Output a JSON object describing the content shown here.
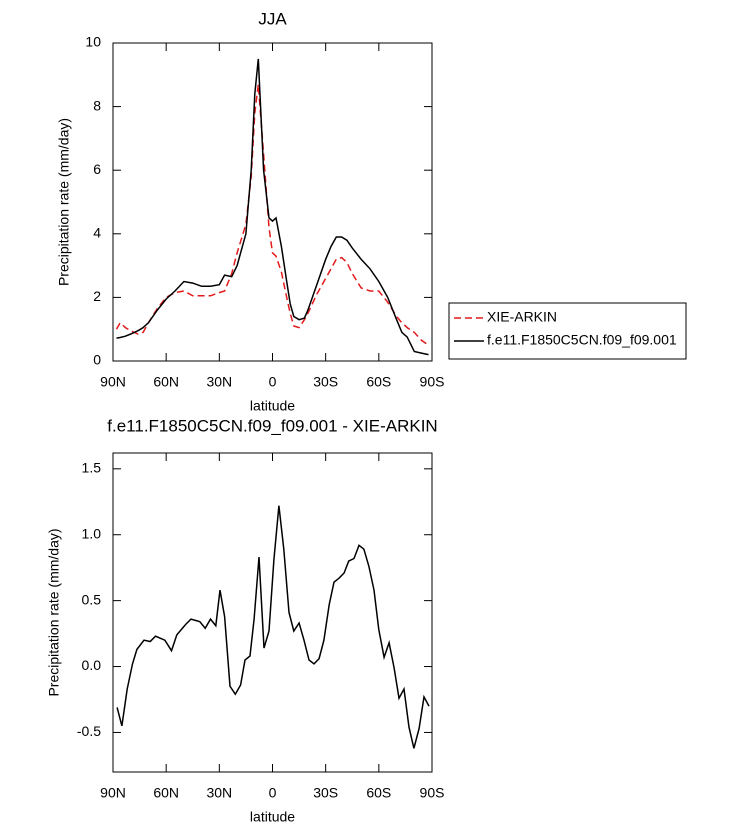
{
  "chart_data": [
    {
      "type": "line",
      "title": "JJA",
      "x_label": "latitude",
      "y_label": "Precipitation rate (mm/day)",
      "x": [
        88,
        86,
        83,
        80,
        76,
        73,
        70,
        65,
        60,
        55,
        50,
        45,
        40,
        35,
        30,
        27,
        23,
        20,
        15,
        12,
        10,
        8,
        5,
        2,
        0,
        -2,
        -5,
        -8,
        -10,
        -12,
        -15,
        -18,
        -20,
        -25,
        -30,
        -33,
        -36,
        -39,
        -42,
        -45,
        -50,
        -55,
        -60,
        -65,
        -70,
        -73,
        -76,
        -80,
        -84,
        -88
      ],
      "series": [
        {
          "name": "XIE-ARKIN",
          "color": "#e31a1c",
          "dashed": true,
          "values": [
            1.0,
            1.2,
            1.05,
            0.95,
            0.85,
            0.9,
            1.2,
            1.65,
            2.0,
            2.15,
            2.2,
            2.05,
            2.05,
            2.05,
            2.15,
            2.2,
            2.75,
            3.4,
            4.3,
            5.8,
            7.8,
            8.7,
            6.5,
            4.2,
            3.4,
            3.3,
            2.8,
            2.0,
            1.5,
            1.1,
            1.05,
            1.3,
            1.5,
            2.1,
            2.6,
            2.9,
            3.2,
            3.25,
            3.1,
            2.75,
            2.3,
            2.2,
            2.2,
            1.85,
            1.4,
            1.2,
            1.05,
            0.9,
            0.65,
            0.5
          ]
        },
        {
          "name": "f.e11.F1850C5CN.f09_f09.001",
          "color": "#000000",
          "dashed": false,
          "values": [
            0.72,
            0.74,
            0.78,
            0.85,
            0.95,
            1.05,
            1.2,
            1.6,
            1.95,
            2.2,
            2.5,
            2.45,
            2.35,
            2.35,
            2.4,
            2.7,
            2.65,
            3.0,
            4.0,
            6.0,
            8.4,
            9.5,
            6.0,
            4.5,
            4.4,
            4.5,
            3.6,
            2.5,
            1.8,
            1.4,
            1.3,
            1.35,
            1.6,
            2.4,
            3.2,
            3.6,
            3.9,
            3.9,
            3.8,
            3.55,
            3.2,
            2.9,
            2.5,
            2.0,
            1.3,
            0.9,
            0.75,
            0.3,
            0.25,
            0.2
          ]
        }
      ],
      "xlim": [
        90,
        -90
      ],
      "xticks": [
        {
          "value": 90,
          "label": "90N"
        },
        {
          "value": 60,
          "label": "60N"
        },
        {
          "value": 30,
          "label": "30N"
        },
        0,
        {
          "value": -30,
          "label": "30S"
        },
        {
          "value": -60,
          "label": "60S"
        },
        {
          "value": -90,
          "label": "90S"
        }
      ],
      "ylim": [
        0,
        10
      ],
      "yticks": [
        0,
        2,
        4,
        6,
        8,
        10
      ],
      "legend": "outside-right"
    },
    {
      "type": "line",
      "title": "f.e11.F1850C5CN.f09_f09.001 - XIE-ARKIN",
      "x_label": "latitude",
      "y_label": "Precipitation rate (mm/day)",
      "x": [
        87.7,
        85,
        82,
        79,
        76.5,
        72.5,
        69,
        66,
        60.7,
        57,
        54,
        49,
        46,
        41,
        38,
        35,
        32,
        29.6,
        27,
        24,
        21,
        18,
        15.5,
        12.7,
        10.4,
        7.6,
        4.8,
        2,
        -0.8,
        -3.6,
        -6.4,
        -9.3,
        -12,
        -15,
        -17.8,
        -20.6,
        -23.4,
        -26.3,
        -29,
        -32,
        -34.7,
        -37.5,
        -40.4,
        -43,
        -46,
        -48.8,
        -51.6,
        -54.4,
        -57.3,
        -60,
        -63,
        -65.8,
        -68.6,
        -71.4,
        -74.2,
        -77,
        -79.8,
        -82.7,
        -85.5,
        -88.3
      ],
      "series": [
        {
          "color": "#000000",
          "dashed": false,
          "values": [
            -0.31,
            -0.45,
            -0.17,
            0.02,
            0.13,
            0.2,
            0.19,
            0.23,
            0.2,
            0.12,
            0.24,
            0.32,
            0.36,
            0.34,
            0.29,
            0.36,
            0.31,
            0.58,
            0.38,
            -0.15,
            -0.21,
            -0.14,
            0.05,
            0.08,
            0.36,
            0.83,
            0.14,
            0.27,
            0.81,
            1.22,
            0.89,
            0.41,
            0.27,
            0.33,
            0.2,
            0.05,
            0.02,
            0.06,
            0.2,
            0.47,
            0.64,
            0.67,
            0.71,
            0.8,
            0.82,
            0.92,
            0.89,
            0.76,
            0.58,
            0.28,
            0.07,
            0.18,
            -0.01,
            -0.24,
            -0.17,
            -0.46,
            -0.62,
            -0.47,
            -0.23,
            -0.3
          ]
        }
      ],
      "xlim": [
        90,
        -90
      ],
      "xticks": [
        {
          "value": 90,
          "label": "90N"
        },
        {
          "value": 60,
          "label": "60N"
        },
        {
          "value": 30,
          "label": "30N"
        },
        0,
        {
          "value": -30,
          "label": "30S"
        },
        {
          "value": -60,
          "label": "60S"
        },
        {
          "value": -90,
          "label": "90S"
        }
      ],
      "ylim": [
        -0.8,
        1.62
      ],
      "yticks": [
        -0.5,
        {
          "value": 0,
          "label": "0.0"
        },
        0.5,
        {
          "value": 1,
          "label": "1.0"
        },
        1.5
      ]
    }
  ]
}
